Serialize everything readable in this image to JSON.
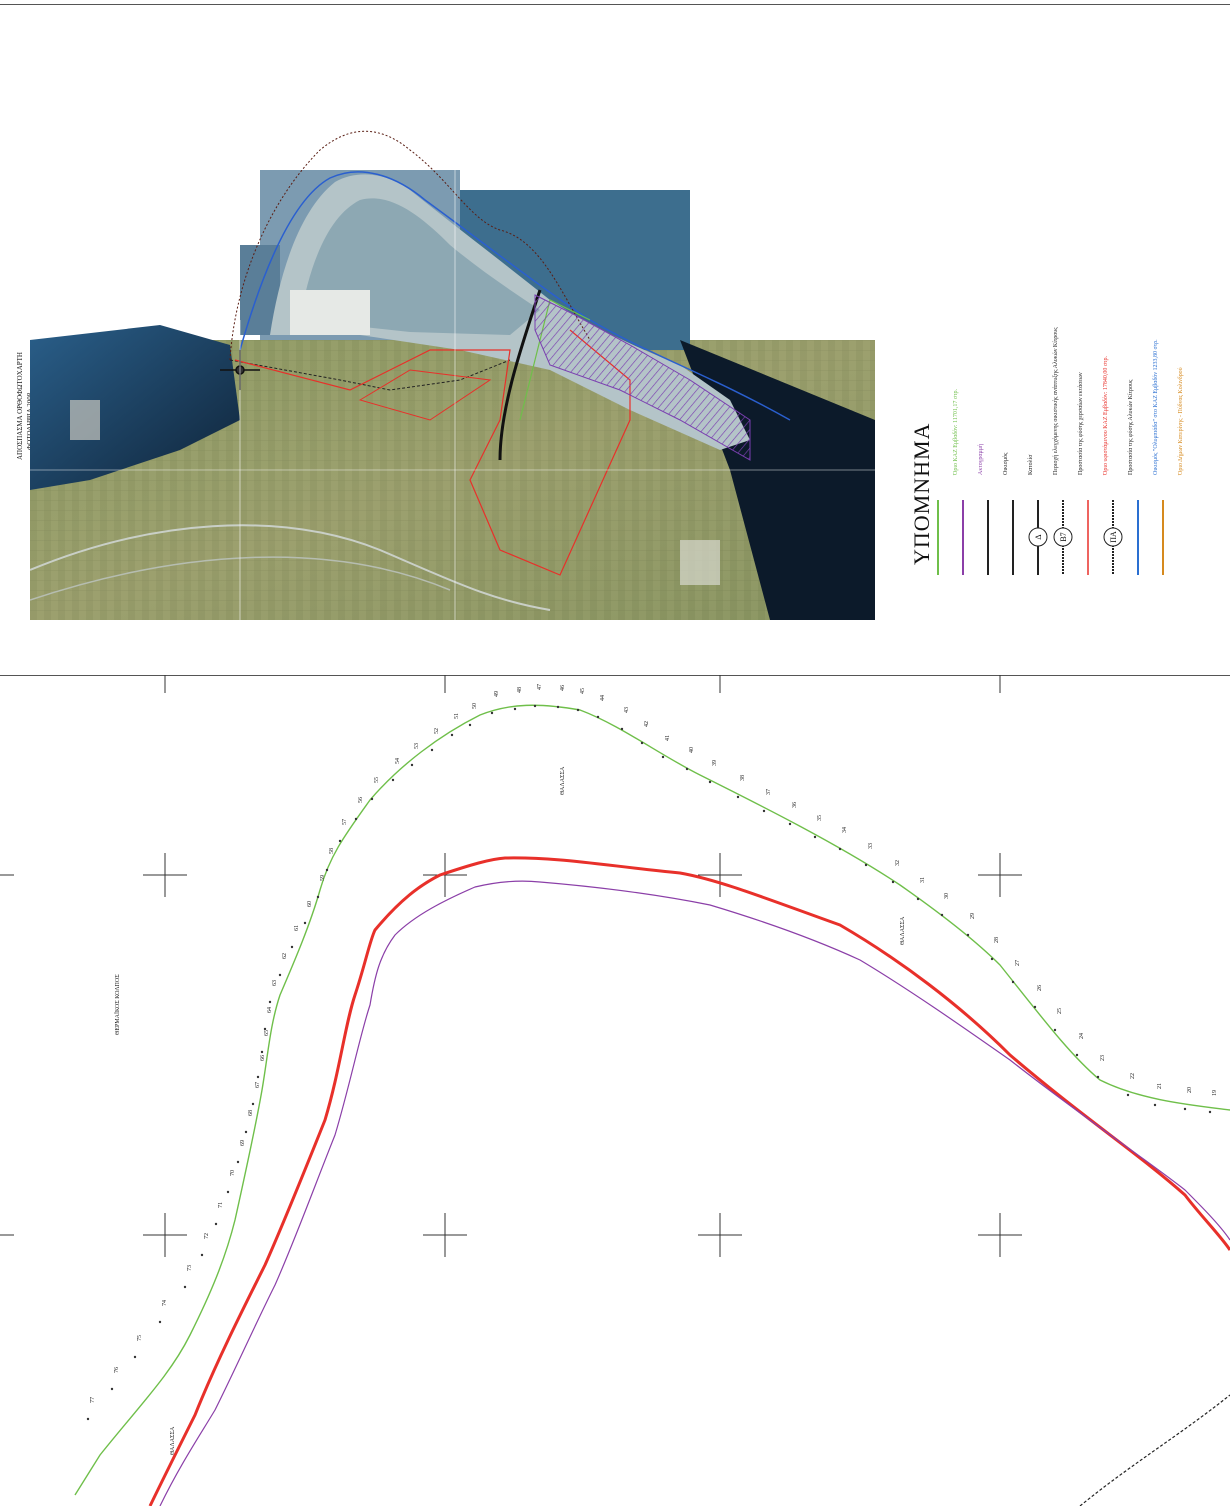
{
  "aerial_caption": {
    "line1": "ΑΠΟΣΠΑΣΜΑ ΟΡΘΟΦΩΤΟΧΑΡΤΗ",
    "line2": "ΦΩΤΟΛΗΨΙΑ 2008"
  },
  "legend": {
    "title": "ΥΠΟΜΝΗΜΑ",
    "items": [
      {
        "text": "Όριο ΚΑΖ Εμβαδόν: 11701,17 στρ.",
        "color": "#6fbf4a"
      },
      {
        "text": "Ακτογραμμή",
        "color": "#8b3fa8"
      },
      {
        "text": "Οικισμός",
        "color": "#222222"
      },
      {
        "text": "Κατολίσ",
        "color": "#222222"
      },
      {
        "text": "Περιοχή ελεγχόμενης οικιστικής ανάπτυξης Αλυκών Κίτρους",
        "color": "#222222"
      },
      {
        "text": "Προστασία της φύσης χερσαίων εκτάσεων",
        "color": "#222222"
      },
      {
        "text": "Όριο υφιστάμενου ΚΑΖ Εμβαδόν: 17840,00 στρ.",
        "color": "#e8302a"
      },
      {
        "text": "Προστασία της φύσης Αλυκών Κίτρους",
        "color": "#222222"
      },
      {
        "text": "Οικισμός \"Ολυμπιάδα\" στο ΚΑΖ Εμβαδόν 1233,80 στρ.",
        "color": "#2a6fd1"
      },
      {
        "text": "Όριο Δήμων Κατερίνης - Πύδνας Κολινδρού",
        "color": "#d68a1e"
      }
    ],
    "symbols": [
      "Δ",
      "Β7",
      "ΠΑ"
    ]
  },
  "plan": {
    "sea_labels": [
      "ΘΑΛΑΣΣΑ",
      "ΘΑΛΑΣΣΑ",
      "ΘΑΛΑΣΣΑ"
    ],
    "gulf_label": "ΘΕΡΜΑΪΚΟΣ ΚΟΛΠΟΣ",
    "point_numbers": [
      "19",
      "20",
      "21",
      "22",
      "23",
      "24",
      "25",
      "26",
      "27",
      "28",
      "29",
      "30",
      "31",
      "32",
      "33",
      "34",
      "35",
      "36",
      "37",
      "38",
      "39",
      "40",
      "41",
      "42",
      "43",
      "44",
      "45",
      "46",
      "47",
      "48",
      "49",
      "50",
      "51",
      "52",
      "53",
      "54",
      "55",
      "56",
      "57",
      "58",
      "59",
      "60",
      "61",
      "62",
      "63",
      "64",
      "65",
      "66",
      "67",
      "68",
      "69",
      "70",
      "71",
      "72",
      "73",
      "74",
      "75",
      "76",
      "77"
    ]
  },
  "colors": {
    "kaz_boundary": "#6fbf4a",
    "coastline": "#8b3fa8",
    "existing_boundary": "#e8302a",
    "settlement": "#2a6fd1",
    "municipality": "#d68a1e"
  }
}
